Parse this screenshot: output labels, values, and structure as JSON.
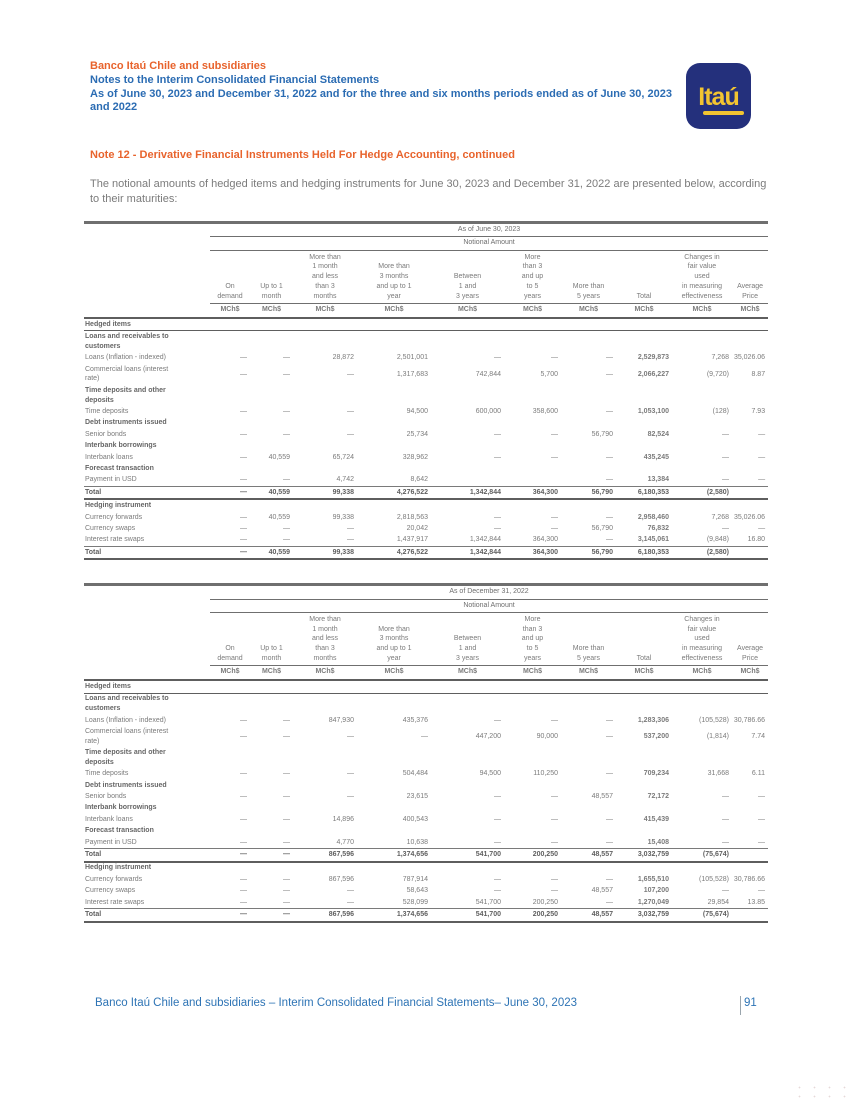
{
  "header": {
    "company": "Banco Itaú Chile and subsidiaries",
    "doc_title": "Notes to the Interim Consolidated Financial Statements",
    "period_line": "As of June 30, 2023 and December 31, 2022 and for the three and six months periods ended as of June 30, 2023 and 2022",
    "logo_text": "Itaú"
  },
  "note_title": "Note 12 - Derivative Financial Instruments Held For Hedge Accounting, continued",
  "intro": "The notional amounts of hedged items and hedging instruments for June 30, 2023 and December 31, 2022 are presented below, according to their maturities:",
  "columns": {
    "headers": [
      [
        "On",
        "demand"
      ],
      [
        "Up to 1",
        "month"
      ],
      [
        "More than",
        "1 month",
        "and less",
        "than 3",
        "months"
      ],
      [
        "More than",
        "3 months",
        "and up to 1",
        "year"
      ],
      [
        "Between",
        "1 and",
        "3 years"
      ],
      [
        "More",
        "than 3",
        "and up",
        "to 5",
        "years"
      ],
      [
        "More than",
        "5 years"
      ],
      [
        "Total"
      ],
      [
        "Changes in",
        "fair value",
        "used",
        "in measuring",
        "effectiveness"
      ],
      [
        "Average",
        "Price"
      ]
    ],
    "unit": "MCh$"
  },
  "tables": [
    {
      "period": "As of June 30, 2023",
      "group": "Notional Amount",
      "rows": [
        {
          "type": "group",
          "label": "Hedged items",
          "rule_below": true
        },
        {
          "type": "subhead",
          "label": "Loans and receivables to customers"
        },
        {
          "type": "data",
          "label": "Loans (Inflation - indexed)",
          "values": [
            "—",
            "—",
            "28,872",
            "2,501,001",
            "—",
            "—",
            "—",
            "2,529,873",
            "7,268",
            "35,026.06"
          ]
        },
        {
          "type": "data",
          "label": "Commercial loans (interest rate)",
          "values": [
            "—",
            "—",
            "—",
            "1,317,683",
            "742,844",
            "5,700",
            "—",
            "2,066,227",
            "(9,720)",
            "8.87"
          ]
        },
        {
          "type": "subhead",
          "label": "Time deposits and other deposits"
        },
        {
          "type": "data",
          "label": "Time deposits",
          "values": [
            "—",
            "—",
            "—",
            "94,500",
            "600,000",
            "358,600",
            "—",
            "1,053,100",
            "(128)",
            "7.93"
          ]
        },
        {
          "type": "subhead",
          "label": "Debt instruments issued"
        },
        {
          "type": "data",
          "label": "Senior bonds",
          "values": [
            "—",
            "—",
            "—",
            "25,734",
            "—",
            "—",
            "56,790",
            "82,524",
            "—",
            "—"
          ]
        },
        {
          "type": "subhead",
          "label": "Interbank borrowings"
        },
        {
          "type": "data",
          "label": "Interbank loans",
          "values": [
            "—",
            "40,559",
            "65,724",
            "328,962",
            "—",
            "—",
            "—",
            "435,245",
            "—",
            "—"
          ]
        },
        {
          "type": "subhead",
          "label": "Forecast transaction"
        },
        {
          "type": "data",
          "label": "Payment in USD",
          "values": [
            "—",
            "—",
            "4,742",
            "8,642",
            "",
            "",
            "—",
            "13,384",
            "—",
            "—"
          ]
        },
        {
          "type": "total",
          "label": "Total",
          "values": [
            "—",
            "40,559",
            "99,338",
            "4,276,522",
            "1,342,844",
            "364,300",
            "56,790",
            "6,180,353",
            "(2,580)",
            ""
          ]
        },
        {
          "type": "group",
          "label": "Hedging instrument"
        },
        {
          "type": "data",
          "label": "Currency forwards",
          "values": [
            "—",
            "40,559",
            "99,338",
            "2,818,563",
            "—",
            "—",
            "—",
            "2,958,460",
            "7,268",
            "35,026.06"
          ]
        },
        {
          "type": "data",
          "label": "Currency swaps",
          "values": [
            "—",
            "—",
            "—",
            "20,042",
            "—",
            "—",
            "56,790",
            "76,832",
            "—",
            "—"
          ]
        },
        {
          "type": "data",
          "label": "Interest rate swaps",
          "values": [
            "—",
            "—",
            "—",
            "1,437,917",
            "1,342,844",
            "364,300",
            "—",
            "3,145,061",
            "(9,848)",
            "16.80"
          ]
        },
        {
          "type": "total",
          "label": "Total",
          "values": [
            "—",
            "40,559",
            "99,338",
            "4,276,522",
            "1,342,844",
            "364,300",
            "56,790",
            "6,180,353",
            "(2,580)",
            ""
          ]
        }
      ]
    },
    {
      "period": "As of December 31, 2022",
      "group": "Notional Amount",
      "rows": [
        {
          "type": "group",
          "label": "Hedged items",
          "rule_below": true
        },
        {
          "type": "subhead",
          "label": "Loans and receivables to customers"
        },
        {
          "type": "data",
          "label": "Loans (Inflation - indexed)",
          "values": [
            "—",
            "—",
            "847,930",
            "435,376",
            "—",
            "—",
            "—",
            "1,283,306",
            "(105,528)",
            "30,786.66"
          ]
        },
        {
          "type": "data",
          "label": "Commercial loans (interest rate)",
          "values": [
            "—",
            "—",
            "—",
            "—",
            "447,200",
            "90,000",
            "—",
            "537,200",
            "(1,814)",
            "7.74"
          ]
        },
        {
          "type": "subhead",
          "label": "Time deposits and other deposits"
        },
        {
          "type": "data",
          "label": "Time deposits",
          "values": [
            "—",
            "—",
            "—",
            "504,484",
            "94,500",
            "110,250",
            "—",
            "709,234",
            "31,668",
            "6.11"
          ]
        },
        {
          "type": "subhead",
          "label": "Debt instruments issued"
        },
        {
          "type": "data",
          "label": "Senior bonds",
          "values": [
            "—",
            "—",
            "—",
            "23,615",
            "—",
            "—",
            "48,557",
            "72,172",
            "—",
            "—"
          ]
        },
        {
          "type": "subhead",
          "label": "Interbank borrowings"
        },
        {
          "type": "data",
          "label": "Interbank loans",
          "values": [
            "—",
            "—",
            "14,896",
            "400,543",
            "—",
            "—",
            "—",
            "415,439",
            "—",
            "—"
          ]
        },
        {
          "type": "subhead",
          "label": "Forecast transaction"
        },
        {
          "type": "data",
          "label": "Payment in USD",
          "values": [
            "—",
            "—",
            "4,770",
            "10,638",
            "—",
            "—",
            "—",
            "15,408",
            "—",
            "—"
          ]
        },
        {
          "type": "total",
          "label": "Total",
          "values": [
            "—",
            "—",
            "867,596",
            "1,374,656",
            "541,700",
            "200,250",
            "48,557",
            "3,032,759",
            "(75,674)",
            ""
          ]
        },
        {
          "type": "group",
          "label": "Hedging instrument"
        },
        {
          "type": "data",
          "label": "Currency forwards",
          "values": [
            "—",
            "—",
            "867,596",
            "787,914",
            "—",
            "—",
            "—",
            "1,655,510",
            "(105,528)",
            "30,786.66"
          ]
        },
        {
          "type": "data",
          "label": "Currency swaps",
          "values": [
            "—",
            "—",
            "—",
            "58,643",
            "—",
            "—",
            "48,557",
            "107,200",
            "—",
            "—"
          ]
        },
        {
          "type": "data",
          "label": "Interest rate swaps",
          "values": [
            "—",
            "—",
            "—",
            "528,099",
            "541,700",
            "200,250",
            "—",
            "1,270,049",
            "29,854",
            "13.85"
          ]
        },
        {
          "type": "total",
          "label": "Total",
          "values": [
            "—",
            "—",
            "867,596",
            "1,374,656",
            "541,700",
            "200,250",
            "48,557",
            "3,032,759",
            "(75,674)",
            ""
          ]
        }
      ]
    }
  ],
  "footer": {
    "text": "Banco Itaú Chile and subsidiaries – Interim Consolidated Financial Statements– June 30, 2023",
    "page_number": "91"
  },
  "colors": {
    "accent_orange": "#E8632C",
    "heading_blue": "#2B6CB3",
    "footer_blue": "#2E74B5",
    "body_gray": "#7B7B7B",
    "table_line": "#6F6F6F",
    "logo_bg": "#24307C",
    "logo_yellow": "#F2C431"
  }
}
